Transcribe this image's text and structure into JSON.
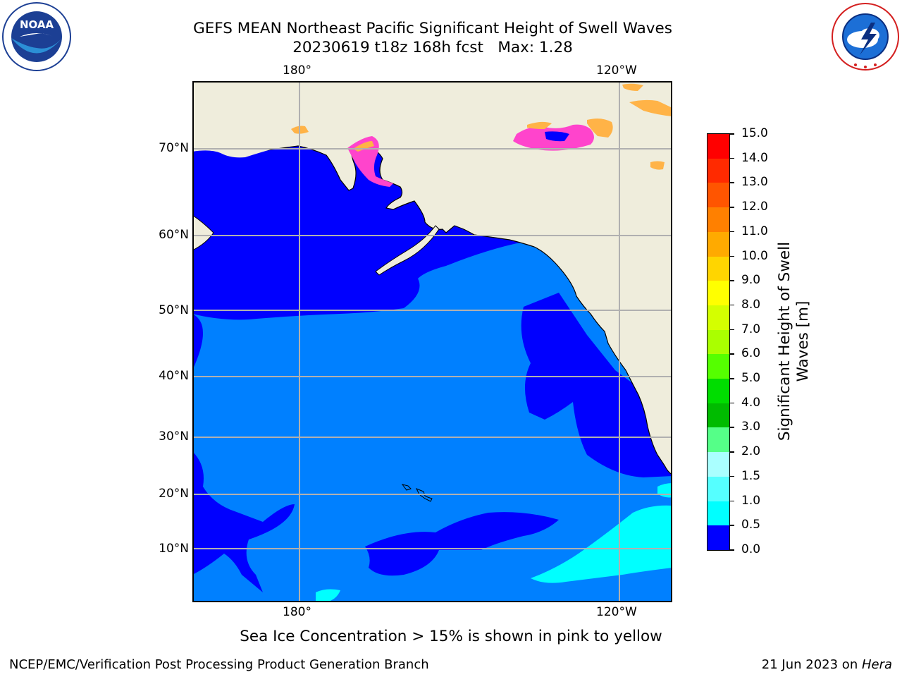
{
  "title": {
    "line1": "GEFS MEAN Northeast Pacific Significant Height of Swell Waves",
    "line2": "20230619 t18z 168h fcst   Max: 1.28"
  },
  "map": {
    "lon_ticks_top": [
      "180°",
      "120°W"
    ],
    "lon_ticks_bottom": [
      "180°",
      "120°W"
    ],
    "lat_ticks": [
      "70°N",
      "60°N",
      "50°N",
      "40°N",
      "30°N",
      "20°N",
      "10°N"
    ],
    "colors": {
      "land": "#efeddc",
      "sea_0_05": "#0000ff",
      "sea_05_10": "#0080ff",
      "sea_10_15": "#00ffff",
      "ice_pink": "#ff44cc",
      "ice_orange": "#ffb347",
      "ice_yellow": "#ffdd33",
      "grid": "#b0b0b0"
    }
  },
  "colorbar": {
    "label_line1": "Significant Height of Swell",
    "label_line2": "Waves [m]",
    "ticks": [
      "15.0",
      "14.0",
      "13.0",
      "12.0",
      "11.0",
      "10.0",
      "9.0",
      "8.0",
      "7.0",
      "6.0",
      "5.0",
      "4.0",
      "3.0",
      "2.0",
      "1.5",
      "1.0",
      "0.5",
      "0.0"
    ],
    "colors": [
      "#ff0000",
      "#ff2a00",
      "#ff5500",
      "#ff8000",
      "#ffaa00",
      "#ffd500",
      "#ffff00",
      "#d4ff00",
      "#aaff00",
      "#55ff00",
      "#00dd00",
      "#00bb00",
      "#55ff88",
      "#aaffff",
      "#55ffff",
      "#00ffff",
      "#0080ff",
      "#0000ff"
    ]
  },
  "caption": "Sea Ice Concentration > 15% is shown in pink to yellow",
  "footer": {
    "left": "NCEP/EMC/Verification Post Processing Product Generation Branch",
    "right_prefix": "21 Jun 2023 on ",
    "right_host": "Hera"
  },
  "logos": {
    "noaa": "NOAA",
    "noaa_ring": "NATIONAL OCEANIC AND ATMOSPHERIC ADMINISTRATION · U.S. DEPARTMENT OF COMMERCE",
    "nws_ring": "NATIONAL WEATHER SERVICE"
  }
}
